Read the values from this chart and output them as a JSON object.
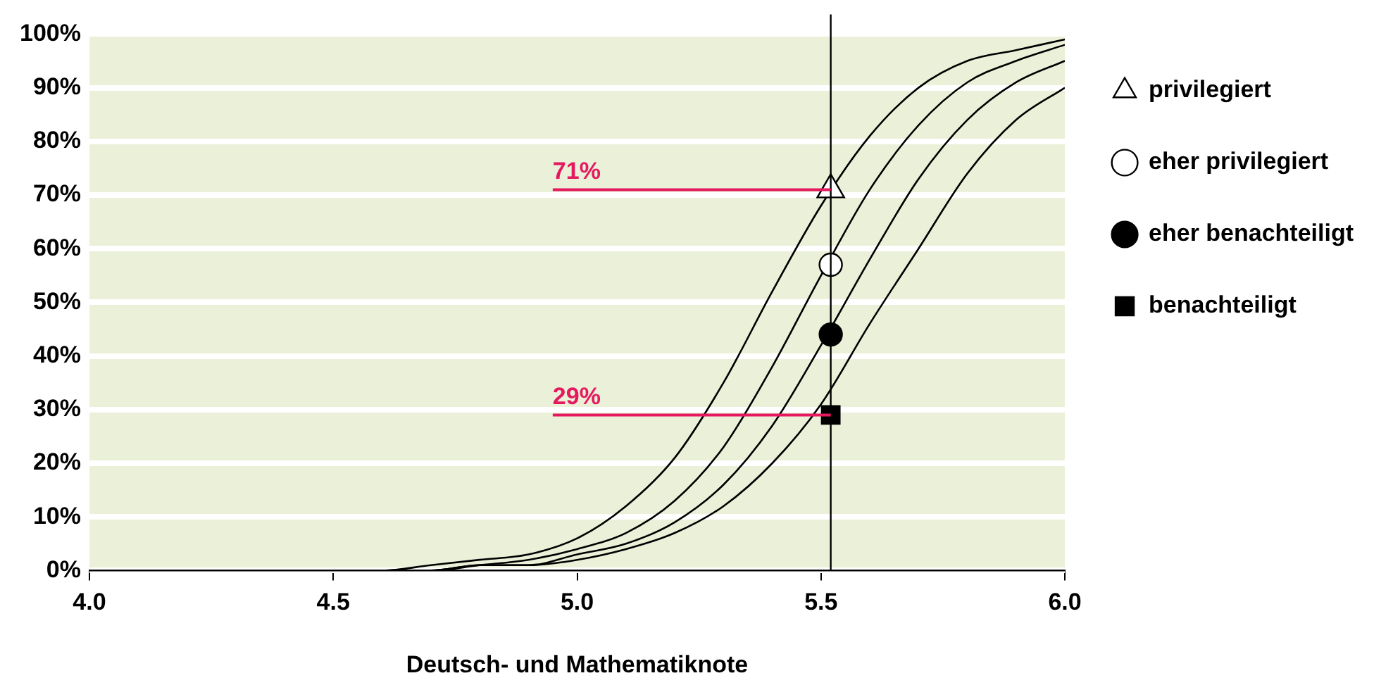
{
  "chart_data": {
    "type": "line",
    "xlabel": "Deutsch- und Mathematiknote",
    "xlim": [
      4,
      6
    ],
    "xticks": [
      {
        "value": 4,
        "label": "4.0"
      },
      {
        "value": 4.5,
        "label": "4.5"
      },
      {
        "value": 5,
        "label": "5.0"
      },
      {
        "value": 5.5,
        "label": "5.5"
      },
      {
        "value": 6,
        "label": "6.0"
      }
    ],
    "ylim": [
      0,
      100
    ],
    "yticks": [
      {
        "value": 0,
        "label": "0%"
      },
      {
        "value": 10,
        "label": "10%"
      },
      {
        "value": 20,
        "label": "20%"
      },
      {
        "value": 30,
        "label": "30%"
      },
      {
        "value": 40,
        "label": "40%"
      },
      {
        "value": 50,
        "label": "50%"
      },
      {
        "value": 60,
        "label": "60%"
      },
      {
        "value": 70,
        "label": "70%"
      },
      {
        "value": 80,
        "label": "80%"
      },
      {
        "value": 90,
        "label": "90%"
      },
      {
        "value": 100,
        "label": "100%"
      }
    ],
    "grid": "y",
    "legend": "right",
    "series": [
      {
        "color": "#000000",
        "marker": "none",
        "x": [
          4,
          4.1,
          4.2,
          4.3,
          4.4,
          4.5,
          4.6,
          4.7,
          4.8,
          4.9,
          5,
          5.1,
          5.2,
          5.3,
          5.4,
          5.5,
          5.6,
          5.7,
          5.8,
          5.9,
          6
        ],
        "values": [
          0,
          0,
          0,
          0,
          0,
          0,
          0,
          1,
          2,
          3,
          6,
          12,
          21,
          35,
          52,
          68,
          81,
          90,
          95,
          97,
          99
        ]
      },
      {
        "color": "#000000",
        "marker": "none",
        "x": [
          4,
          4.1,
          4.2,
          4.3,
          4.4,
          4.5,
          4.6,
          4.7,
          4.8,
          4.9,
          5,
          5.1,
          5.2,
          5.3,
          5.4,
          5.5,
          5.6,
          5.7,
          5.8,
          5.9,
          6
        ],
        "values": [
          0,
          0,
          0,
          0,
          0,
          0,
          0,
          0,
          1,
          2,
          4,
          7,
          13,
          23,
          38,
          55,
          71,
          83,
          91,
          95,
          98
        ]
      },
      {
        "color": "#000000",
        "marker": "none",
        "x": [
          4,
          4.1,
          4.2,
          4.3,
          4.4,
          4.5,
          4.6,
          4.7,
          4.8,
          4.9,
          5,
          5.1,
          5.2,
          5.3,
          5.4,
          5.5,
          5.6,
          5.7,
          5.8,
          5.9,
          6
        ],
        "values": [
          0,
          0,
          0,
          0,
          0,
          0,
          0,
          0,
          1,
          1,
          3,
          5,
          9,
          16,
          27,
          42,
          58,
          73,
          84,
          91,
          95
        ]
      },
      {
        "color": "#000000",
        "marker": "none",
        "x": [
          4,
          4.1,
          4.2,
          4.3,
          4.4,
          4.5,
          4.6,
          4.7,
          4.8,
          4.9,
          5,
          5.1,
          5.2,
          5.3,
          5.4,
          5.5,
          5.6,
          5.7,
          5.8,
          5.9,
          6
        ],
        "values": [
          0,
          0,
          0,
          0,
          0,
          0,
          0,
          0,
          1,
          1,
          2,
          4,
          7,
          12,
          20,
          31,
          46,
          60,
          74,
          84,
          90
        ]
      },
      {
        "type": "scatter",
        "name": "privilegiert",
        "color": "#ffffff",
        "marker": "triangle",
        "x": [
          5.52
        ],
        "values": [
          71
        ]
      },
      {
        "type": "scatter",
        "name": "eher privilegiert",
        "color": "#ffffff",
        "marker": "circle",
        "x": [
          5.52
        ],
        "values": [
          57
        ]
      },
      {
        "type": "scatter",
        "name": "eher benachteiligt",
        "color": "#000000",
        "marker": "circle",
        "x": [
          5.52
        ],
        "values": [
          44
        ]
      },
      {
        "type": "scatter",
        "name": "benachteiligt",
        "color": "#000000",
        "marker": "square",
        "x": [
          5.52
        ],
        "values": [
          29
        ]
      }
    ],
    "ref_lines": [
      {
        "axis": "x",
        "value": 5.52,
        "color": "#000000"
      },
      {
        "axis": "y",
        "value": 71,
        "label": "71%",
        "color": "#e5195f"
      },
      {
        "axis": "y",
        "value": 29,
        "label": "29%",
        "color": "#e5195f"
      }
    ]
  }
}
